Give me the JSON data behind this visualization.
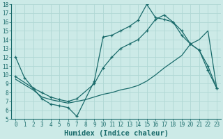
{
  "xlabel": "Humidex (Indice chaleur)",
  "xlim": [
    -0.5,
    23.5
  ],
  "ylim": [
    5,
    18
  ],
  "xticks": [
    0,
    1,
    2,
    3,
    4,
    5,
    6,
    7,
    8,
    9,
    10,
    11,
    12,
    13,
    14,
    15,
    16,
    17,
    18,
    19,
    20,
    21,
    22,
    23
  ],
  "yticks": [
    5,
    6,
    7,
    8,
    9,
    10,
    11,
    12,
    13,
    14,
    15,
    16,
    17,
    18
  ],
  "bg_color": "#cceae7",
  "grid_color": "#b0d8d4",
  "line_color": "#1a6b6b",
  "line1_x": [
    0,
    1,
    2,
    3,
    4,
    5,
    6,
    7,
    9,
    10,
    11,
    12,
    13,
    14,
    15,
    16,
    17,
    18,
    19,
    20,
    21,
    22,
    23
  ],
  "line1_y": [
    12,
    9.7,
    8.5,
    7.3,
    6.7,
    6.5,
    6.3,
    5.3,
    9.3,
    14.3,
    14.5,
    15.0,
    15.5,
    16.2,
    18.0,
    16.5,
    16.3,
    16.0,
    15.0,
    13.5,
    12.8,
    10.5,
    8.5
  ],
  "line2_x": [
    0,
    2,
    3,
    4,
    5,
    6,
    7,
    9,
    10,
    11,
    12,
    13,
    14,
    15,
    16,
    17,
    18,
    19,
    20,
    21,
    22,
    23
  ],
  "line2_y": [
    9.8,
    8.5,
    8.0,
    7.5,
    7.2,
    7.0,
    7.3,
    9.0,
    10.8,
    12.0,
    13.0,
    13.5,
    14.0,
    15.0,
    16.3,
    16.8,
    16.0,
    14.5,
    13.5,
    12.8,
    11.0,
    8.5
  ],
  "line3_x": [
    0,
    2,
    3,
    4,
    5,
    6,
    7,
    8,
    9,
    10,
    11,
    12,
    13,
    14,
    15,
    16,
    17,
    18,
    19,
    20,
    21,
    22,
    23
  ],
  "line3_y": [
    9.5,
    8.3,
    7.5,
    7.2,
    7.0,
    6.8,
    7.0,
    7.2,
    7.5,
    7.8,
    8.0,
    8.3,
    8.5,
    8.8,
    9.3,
    10.0,
    10.8,
    11.5,
    12.2,
    13.5,
    14.0,
    15.0,
    8.5
  ],
  "tick_fontsize": 5.5,
  "xlabel_fontsize": 7.5
}
